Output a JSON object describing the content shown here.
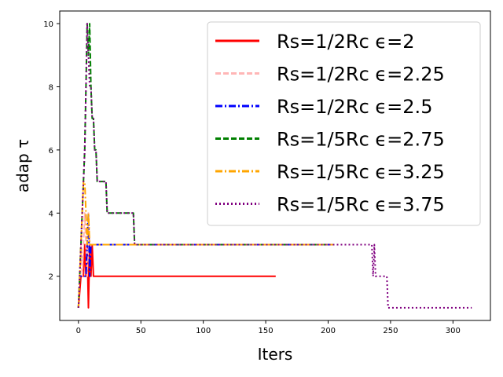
{
  "chart_data": {
    "type": "line",
    "xlabel": "Iters",
    "ylabel": "adap τ",
    "xlim": [
      -15,
      330
    ],
    "ylim": [
      0.6,
      10.4
    ],
    "xticks": [
      0,
      50,
      100,
      150,
      200,
      250,
      300
    ],
    "yticks": [
      2,
      4,
      6,
      8,
      10
    ],
    "legend_position": "top-right",
    "grid": false,
    "series": [
      {
        "name": "Rs=1/2Rc ϵ=2",
        "color": "#ff0000",
        "style": "solid",
        "x": [
          0,
          2,
          3,
          4,
          5,
          6,
          7,
          8,
          9,
          10,
          11,
          12,
          158
        ],
        "y": [
          1,
          2,
          2,
          2,
          3,
          2,
          3,
          1,
          3,
          2,
          3,
          2,
          2
        ]
      },
      {
        "name": "Rs=1/2Rc ϵ=2.25",
        "color": "#ffb6b6",
        "style": "dashed",
        "x": [
          0,
          2,
          3,
          4,
          5,
          6,
          7,
          8,
          9,
          10,
          205
        ],
        "y": [
          1,
          3,
          2,
          3,
          4,
          3,
          2,
          4,
          3,
          3,
          3
        ]
      },
      {
        "name": "Rs=1/2Rc ϵ=2.5",
        "color": "#0000ff",
        "style": "dashdot",
        "x": [
          0,
          1,
          2,
          3,
          6,
          7,
          8,
          9,
          10,
          11,
          205
        ],
        "y": [
          1,
          2,
          2,
          2,
          2,
          3,
          4,
          2,
          3,
          3,
          3
        ]
      },
      {
        "name": "Rs=1/5Rc ϵ=2.75",
        "color": "#008000",
        "style": "dashed",
        "x": [
          0,
          1,
          2,
          3,
          4,
          5,
          6,
          7,
          8,
          9,
          10,
          11,
          12,
          13,
          14,
          15,
          22,
          23,
          44,
          45,
          205
        ],
        "y": [
          1,
          2,
          3,
          4,
          5,
          6,
          8,
          10,
          9,
          10,
          8,
          7,
          7,
          6,
          6,
          5,
          5,
          4,
          4,
          3,
          3
        ]
      },
      {
        "name": "Rs=1/5Rc ϵ=3.25",
        "color": "#ffa500",
        "style": "dashdot",
        "x": [
          0,
          1,
          2,
          3,
          4,
          5,
          6,
          7,
          8,
          9,
          10,
          205
        ],
        "y": [
          1,
          2,
          3,
          4,
          5,
          5,
          4,
          3,
          4,
          3,
          3,
          3
        ]
      },
      {
        "name": "Rs=1/5Rc ϵ=3.75",
        "color": "#800080",
        "style": "dotted",
        "x": [
          0,
          1,
          2,
          3,
          4,
          5,
          6,
          7,
          8,
          9,
          10,
          11,
          12,
          13,
          14,
          15,
          22,
          23,
          44,
          45,
          235,
          236,
          237,
          238,
          239,
          240,
          247,
          248,
          315
        ],
        "y": [
          1,
          2,
          3,
          4,
          5,
          6,
          8,
          10,
          9,
          8,
          8,
          7,
          7,
          6,
          6,
          5,
          5,
          4,
          4,
          3,
          3,
          2,
          3,
          2,
          2,
          2,
          2,
          1,
          1
        ]
      }
    ]
  }
}
